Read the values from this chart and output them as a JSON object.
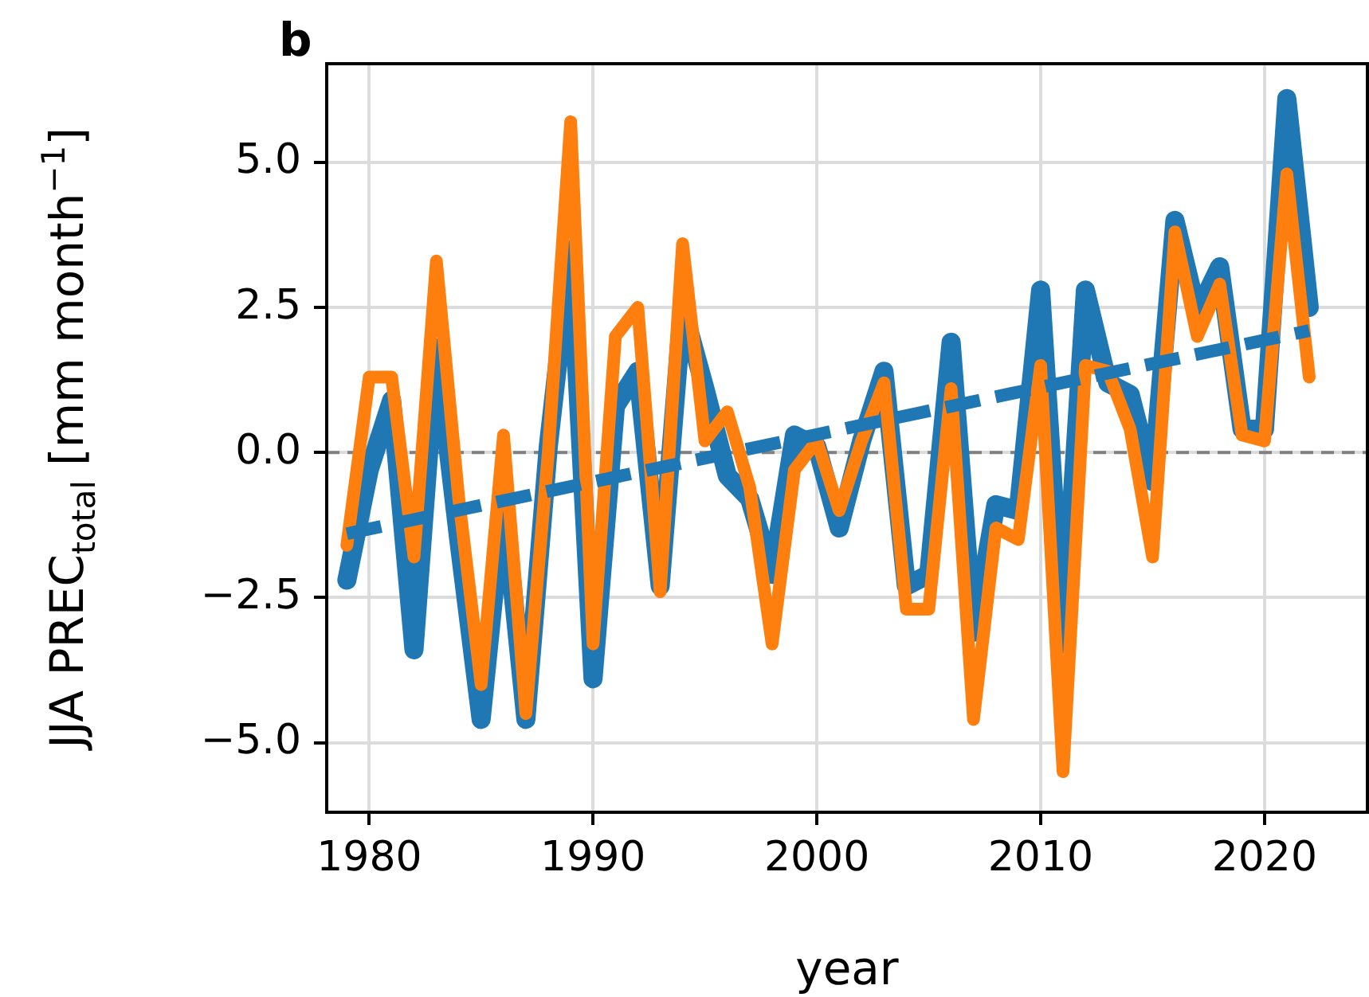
{
  "chart_data": {
    "type": "line",
    "xlabel": "year",
    "ylabel": "JJA PREC$_{total}$ [mm month$^{−1}$]",
    "annotations": [
      "b"
    ],
    "x": [
      1979,
      1980,
      1981,
      1982,
      1983,
      1984,
      1985,
      1986,
      1987,
      1988,
      1989,
      1990,
      1991,
      1992,
      1993,
      1994,
      1995,
      1996,
      1997,
      1998,
      1999,
      2000,
      2001,
      2002,
      2003,
      2004,
      2005,
      2006,
      2007,
      2008,
      2009,
      2010,
      2011,
      2012,
      2013,
      2014,
      2015,
      2016,
      2017,
      2018,
      2019,
      2020,
      2021,
      2022
    ],
    "series": [
      {
        "color": "#1f77b4",
        "values": [
          -2.2,
          -0.3,
          0.9,
          -3.4,
          1.8,
          -1.5,
          -4.6,
          -0.8,
          -4.6,
          0.1,
          3.5,
          -3.9,
          0.8,
          1.4,
          -2.3,
          2.5,
          1.1,
          -0.4,
          -0.8,
          -2.1,
          0.3,
          0.1,
          -1.3,
          0.2,
          1.4,
          -2.3,
          -2.1,
          1.9,
          -3.1,
          -0.9,
          -1.0,
          2.8,
          -3.3,
          2.8,
          1.2,
          1.0,
          -0.5,
          4.0,
          2.4,
          3.2,
          0.4,
          0.4,
          6.1,
          2.5
        ]
      },
      {
        "color": "#ff7f0e",
        "values": [
          -1.6,
          1.3,
          1.3,
          -1.8,
          3.3,
          -0.8,
          -4.0,
          0.3,
          -4.5,
          0.0,
          5.7,
          -3.3,
          2.0,
          2.5,
          -2.4,
          3.6,
          0.2,
          0.7,
          -0.6,
          -3.3,
          -0.3,
          0.2,
          -1.0,
          0.2,
          1.2,
          -2.7,
          -2.7,
          1.1,
          -4.6,
          -1.3,
          -1.5,
          1.5,
          -5.5,
          1.5,
          1.4,
          0.4,
          -1.8,
          3.8,
          2.0,
          2.9,
          0.3,
          0.2,
          4.8,
          1.3
        ]
      },
      {
        "type": "line",
        "color": "#1f77b4",
        "line_style": "dashed",
        "x": [
          1979,
          2022
        ],
        "values": [
          -1.4,
          2.1
        ]
      }
    ],
    "xlim": [
      1978.1,
      2024.6
    ],
    "xticks": [
      1980,
      1990,
      2000,
      2010,
      2020
    ],
    "ylim": [
      -6.2,
      6.7
    ],
    "yticks": [
      {
        "value": -5,
        "label": "−5.0"
      },
      {
        "value": -2.5,
        "label": "−2.5"
      },
      {
        "value": 0,
        "label": "0.0"
      },
      {
        "value": 2.5,
        "label": "2.5"
      },
      {
        "value": 5,
        "label": "5.0"
      }
    ],
    "ref_lines": [
      {
        "axis": "y",
        "value": 0,
        "color": "#808080",
        "line_style": "dashed"
      }
    ],
    "grid": true,
    "legend": false,
    "marker": "none"
  }
}
